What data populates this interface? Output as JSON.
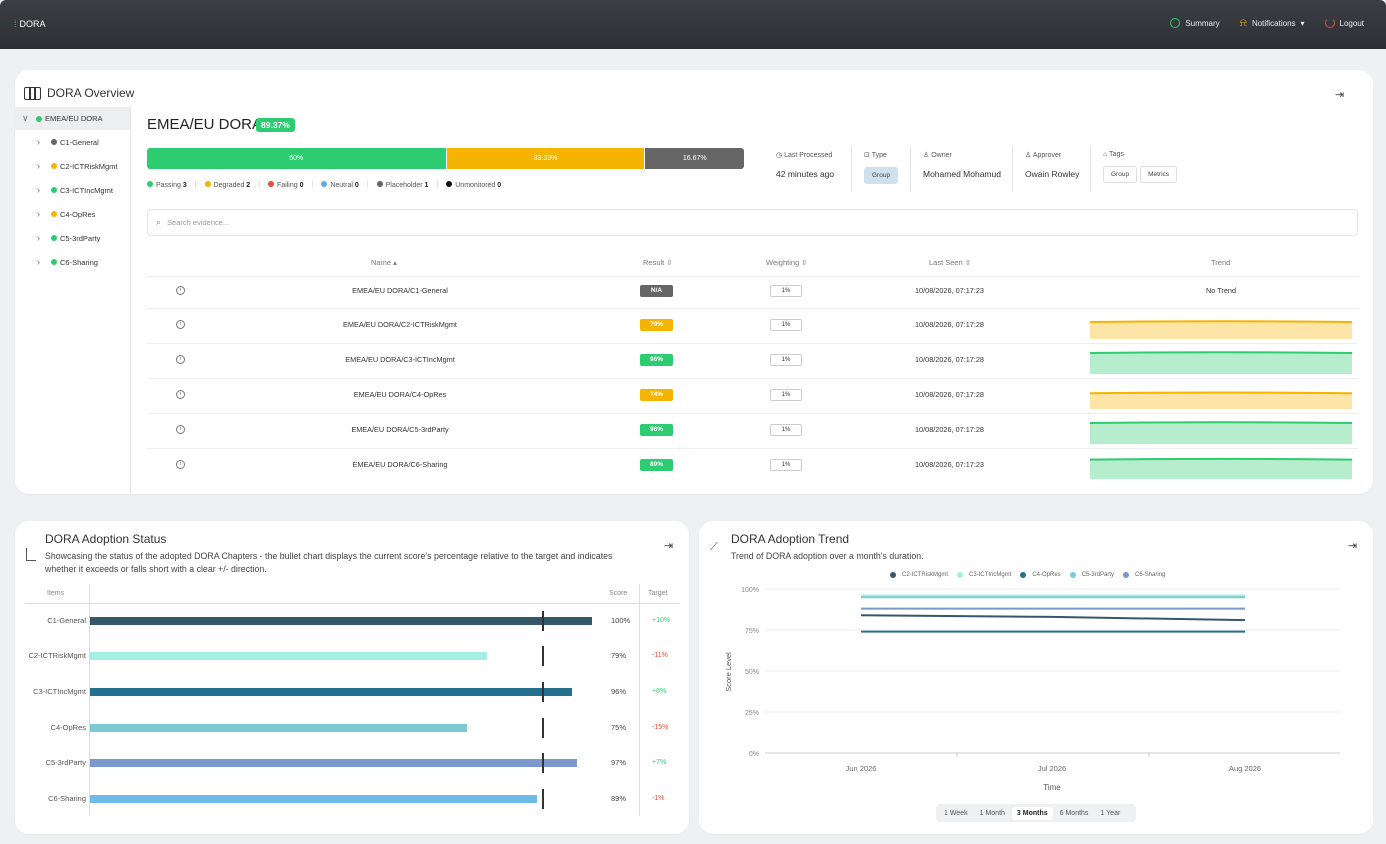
{
  "app": {
    "brand": "DORA"
  },
  "topnav": {
    "summary": "Summary",
    "notifications": "Notifications",
    "logout": "Logout"
  },
  "overview": {
    "title": "DORA Overview",
    "tree": {
      "root": "EMEA/EU DORA",
      "children": [
        {
          "label": "C1-General",
          "color": "#666666"
        },
        {
          "label": "C2-ICTRiskMgmt",
          "color": "#f5b400"
        },
        {
          "label": "C3-ICTIncMgmt",
          "color": "#2ecc71"
        },
        {
          "label": "C4-OpRes",
          "color": "#f5b400"
        },
        {
          "label": "C5-3rdParty",
          "color": "#2ecc71"
        },
        {
          "label": "C6-Sharing",
          "color": "#2ecc71"
        }
      ]
    },
    "group": {
      "title": "EMEA/EU DORA",
      "score": "89.37%"
    },
    "stack": [
      {
        "label": "50%",
        "fraction": 0.5,
        "color": "#2ecc71"
      },
      {
        "label": "33.33%",
        "fraction": 0.3333,
        "color": "#f5b400"
      },
      {
        "label": "16.67%",
        "fraction": 0.1667,
        "color": "#666666"
      }
    ],
    "legend": [
      {
        "label": "Passing",
        "count": "3",
        "color": "#2ecc71"
      },
      {
        "label": "Degraded",
        "count": "2",
        "color": "#f5b400"
      },
      {
        "label": "Failing",
        "count": "0",
        "color": "#e74c3c"
      },
      {
        "label": "Neutral",
        "count": "0",
        "color": "#5dade2"
      },
      {
        "label": "Placeholder",
        "count": "1",
        "color": "#666666"
      },
      {
        "label": "Unmonitored",
        "count": "0",
        "color": "#111111"
      }
    ],
    "meta": {
      "last_processed_label": "Last Processed",
      "last_processed": "42 minutes ago",
      "type_label": "Type",
      "type": "Group",
      "owner_label": "Owner",
      "owner": "Mohamed Mohamud",
      "approver_label": "Approver",
      "approver": "Owain Rowley",
      "tags_label": "Tags",
      "tags": [
        "Group",
        "Metrics"
      ]
    },
    "search_placeholder": "Search evidence...",
    "columns": {
      "name": "Name",
      "result": "Result",
      "weighting": "Weighting",
      "last_seen": "Last Seen",
      "trend": "Trend"
    },
    "rows": [
      {
        "name": "EMEA/EU DORA/C1-General",
        "result": "N/A",
        "color": "#666666",
        "weight": "1%",
        "seen": "10/08/2026, 07:17:23",
        "trend": "No Trend",
        "level": null
      },
      {
        "name": "EMEA/EU DORA/C2-ICTRiskMgmt",
        "result": "79%",
        "color": "#f5b400",
        "weight": "1%",
        "seen": "10/08/2026, 07:17:28",
        "trend": "",
        "level": 0.79
      },
      {
        "name": "EMEA/EU DORA/C3-ICTIncMgmt",
        "result": "96%",
        "color": "#2ecc71",
        "weight": "1%",
        "seen": "10/08/2026, 07:17:28",
        "trend": "",
        "level": 0.96
      },
      {
        "name": "EMEA/EU DORA/C4-OpRes",
        "result": "74%",
        "color": "#f5b400",
        "weight": "1%",
        "seen": "10/08/2026, 07:17:28",
        "trend": "",
        "level": 0.74
      },
      {
        "name": "EMEA/EU DORA/C5-3rdParty",
        "result": "96%",
        "color": "#2ecc71",
        "weight": "1%",
        "seen": "10/08/2026, 07:17:28",
        "trend": "",
        "level": 0.96
      },
      {
        "name": "EMEA/EU DORA/C6-Sharing",
        "result": "89%",
        "color": "#2ecc71",
        "weight": "1%",
        "seen": "10/08/2026, 07:17:23",
        "trend": "",
        "level": 0.89
      }
    ]
  },
  "adoption_status": {
    "title": "DORA Adoption Status",
    "subtitle": "Showcasing the status of the adopted DORA Chapters - the bullet chart displays the current score's percentage relative to the target and indicates whether it exceeds or falls short with a clear +/- direction.",
    "headers": {
      "items": "Items",
      "score": "Score",
      "target": "Target"
    }
  },
  "adoption_trend": {
    "title": "DORA Adoption Trend",
    "subtitle": "Trend of DORA adoption over a month's duration.",
    "ranges": [
      "1 Week",
      "1 Month",
      "3 Months",
      "6 Months",
      "1 Year"
    ],
    "selected_range": "3 Months"
  },
  "chart_data": [
    {
      "type": "bar",
      "title": "DORA Adoption Status",
      "categories": [
        "C1-General",
        "C2-ICTRiskMgmt",
        "C3-ICTIncMgmt",
        "C4-OpRes",
        "C5-3rdParty",
        "C6-Sharing"
      ],
      "values": [
        100,
        79,
        96,
        75,
        97,
        89
      ],
      "score_labels": [
        "100%",
        "79%",
        "96%",
        "75%",
        "97%",
        "89%"
      ],
      "target": 90,
      "deltas": [
        "+10%",
        "-11%",
        "+6%",
        "-15%",
        "+7%",
        "-1%"
      ],
      "colors": [
        "#35576a",
        "#a3efe1",
        "#226f8e",
        "#7ec9d3",
        "#7b98cb",
        "#6fbbe6"
      ],
      "ylim": [
        0,
        100
      ]
    },
    {
      "type": "line",
      "title": "DORA Adoption Trend",
      "xlabel": "Time",
      "ylabel": "Score Level",
      "x": [
        "Jun 2026",
        "Jul 2026",
        "Aug 2026"
      ],
      "yticks": [
        "0%",
        "25%",
        "50%",
        "75%",
        "100%"
      ],
      "ylim": [
        0,
        100
      ],
      "legend": "top",
      "series": [
        {
          "name": "C2-ICTRiskMgmt",
          "color": "#35576a",
          "values": [
            84,
            83,
            81
          ]
        },
        {
          "name": "C3-ICTIncMgmt",
          "color": "#a3efe1",
          "values": [
            96,
            96,
            96
          ]
        },
        {
          "name": "C4-OpRes",
          "color": "#226f8e",
          "values": [
            74,
            74,
            74
          ]
        },
        {
          "name": "C5-3rdParty",
          "color": "#7ec9d3",
          "values": [
            95,
            95,
            95
          ]
        },
        {
          "name": "C6-Sharing",
          "color": "#7b98cb",
          "values": [
            88,
            88,
            88
          ]
        }
      ]
    }
  ]
}
